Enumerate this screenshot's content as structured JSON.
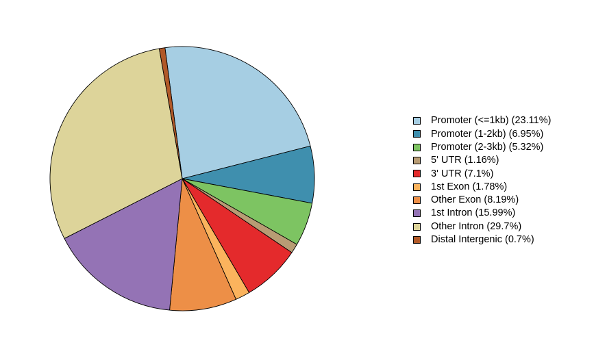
{
  "chart_data": {
    "type": "pie",
    "start_angle_deg": 97.5,
    "direction": "clockwise",
    "legend_position": "right",
    "slices": [
      {
        "label": "Promoter (<=1kb) (23.11%)",
        "value": 23.11,
        "color": "#A6CEE3"
      },
      {
        "label": "Promoter (1-2kb) (6.95%)",
        "value": 6.95,
        "color": "#3F8FAE"
      },
      {
        "label": "Promoter (2-3kb) (5.32%)",
        "value": 5.32,
        "color": "#7DC462"
      },
      {
        "label": "5' UTR (1.16%)",
        "value": 1.16,
        "color": "#B89C74"
      },
      {
        "label": "3' UTR (7.1%)",
        "value": 7.1,
        "color": "#E42A2C"
      },
      {
        "label": "1st Exon (1.78%)",
        "value": 1.78,
        "color": "#FBB35D"
      },
      {
        "label": "Other Exon (8.19%)",
        "value": 8.19,
        "color": "#ED8F47"
      },
      {
        "label": "1st Intron (15.99%)",
        "value": 15.99,
        "color": "#9473B5"
      },
      {
        "label": "Other Intron (29.7%)",
        "value": 29.7,
        "color": "#DDD49A"
      },
      {
        "label": "Distal Intergenic (0.7%)",
        "value": 0.7,
        "color": "#B15928"
      }
    ]
  }
}
